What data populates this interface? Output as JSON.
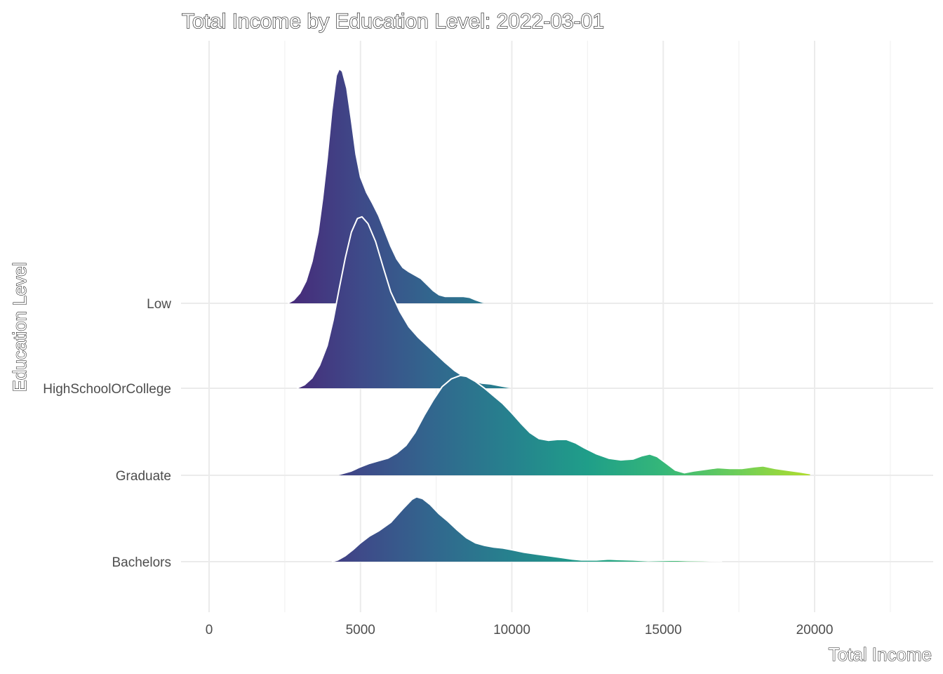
{
  "chart_data": {
    "type": "area",
    "subtype": "ridgeline",
    "title": "Total Income by Education Level: 2022-03-01",
    "xlabel": "Total Income",
    "ylabel": "Education Level",
    "xlim": [
      -500,
      24000
    ],
    "x_ticks": [
      0,
      5000,
      10000,
      15000,
      20000
    ],
    "x_tick_labels": [
      "0",
      "5000",
      "10000",
      "15000",
      "20000"
    ],
    "fill": "viridis gradient along x",
    "colors": [
      "#440154",
      "#482878",
      "#3e4a89",
      "#31688e",
      "#26828e",
      "#1f9e89",
      "#35b779",
      "#6ece58",
      "#b5de2b"
    ],
    "outline_color": "#ffffff",
    "grid": true,
    "legend": "none",
    "categories": [
      "Bachelors",
      "Graduate",
      "HighSchoolOrCollege",
      "Low"
    ],
    "series": [
      {
        "name": "Bachelors",
        "density": [
          [
            4050,
            0
          ],
          [
            4250,
            0.02
          ],
          [
            4500,
            0.07
          ],
          [
            4750,
            0.14
          ],
          [
            5000,
            0.22
          ],
          [
            5300,
            0.3
          ],
          [
            5600,
            0.36
          ],
          [
            6000,
            0.46
          ],
          [
            6400,
            0.62
          ],
          [
            6700,
            0.73
          ],
          [
            6850,
            0.76
          ],
          [
            7050,
            0.74
          ],
          [
            7300,
            0.67
          ],
          [
            7600,
            0.56
          ],
          [
            7900,
            0.47
          ],
          [
            8200,
            0.37
          ],
          [
            8500,
            0.28
          ],
          [
            8800,
            0.22
          ],
          [
            9100,
            0.19
          ],
          [
            9400,
            0.17
          ],
          [
            9700,
            0.16
          ],
          [
            10000,
            0.14
          ],
          [
            10400,
            0.11
          ],
          [
            10800,
            0.09
          ],
          [
            11200,
            0.07
          ],
          [
            11600,
            0.05
          ],
          [
            12000,
            0.03
          ],
          [
            12300,
            0.02
          ],
          [
            12800,
            0.02
          ],
          [
            13200,
            0.03
          ],
          [
            13500,
            0.025
          ],
          [
            14000,
            0.02
          ],
          [
            14500,
            0.01
          ],
          [
            15000,
            0.015
          ],
          [
            15400,
            0.017
          ],
          [
            15800,
            0.012
          ],
          [
            16300,
            0.01
          ],
          [
            16950,
            0.005
          ]
        ]
      },
      {
        "name": "Graduate",
        "density": [
          [
            4300,
            0.01
          ],
          [
            4700,
            0.05
          ],
          [
            5000,
            0.1
          ],
          [
            5300,
            0.14
          ],
          [
            5600,
            0.17
          ],
          [
            5900,
            0.2
          ],
          [
            6200,
            0.26
          ],
          [
            6500,
            0.35
          ],
          [
            6800,
            0.5
          ],
          [
            7100,
            0.7
          ],
          [
            7400,
            0.88
          ],
          [
            7700,
            1.04
          ],
          [
            8000,
            1.13
          ],
          [
            8300,
            1.17
          ],
          [
            8500,
            1.16
          ],
          [
            8800,
            1.1
          ],
          [
            9100,
            1.02
          ],
          [
            9400,
            0.93
          ],
          [
            9700,
            0.84
          ],
          [
            10000,
            0.73
          ],
          [
            10300,
            0.61
          ],
          [
            10600,
            0.5
          ],
          [
            10900,
            0.43
          ],
          [
            11200,
            0.41
          ],
          [
            11500,
            0.42
          ],
          [
            11800,
            0.42
          ],
          [
            12100,
            0.38
          ],
          [
            12400,
            0.32
          ],
          [
            12800,
            0.25
          ],
          [
            13200,
            0.2
          ],
          [
            13600,
            0.18
          ],
          [
            14000,
            0.19
          ],
          [
            14300,
            0.23
          ],
          [
            14550,
            0.25
          ],
          [
            14800,
            0.22
          ],
          [
            15100,
            0.14
          ],
          [
            15400,
            0.06
          ],
          [
            15700,
            0.03
          ],
          [
            16000,
            0.05
          ],
          [
            16400,
            0.07
          ],
          [
            16800,
            0.09
          ],
          [
            17200,
            0.08
          ],
          [
            17600,
            0.08
          ],
          [
            18000,
            0.1
          ],
          [
            18300,
            0.11
          ],
          [
            18700,
            0.08
          ],
          [
            19100,
            0.06
          ],
          [
            19500,
            0.04
          ],
          [
            19850,
            0.02
          ]
        ]
      },
      {
        "name": "HighSchoolOrCollege",
        "density": [
          [
            2900,
            0
          ],
          [
            3150,
            0.04
          ],
          [
            3400,
            0.12
          ],
          [
            3650,
            0.27
          ],
          [
            3900,
            0.5
          ],
          [
            4100,
            0.8
          ],
          [
            4300,
            1.17
          ],
          [
            4500,
            1.53
          ],
          [
            4700,
            1.83
          ],
          [
            4900,
            1.99
          ],
          [
            5050,
            2.01
          ],
          [
            5250,
            1.93
          ],
          [
            5500,
            1.72
          ],
          [
            5750,
            1.42
          ],
          [
            6000,
            1.13
          ],
          [
            6300,
            0.9
          ],
          [
            6600,
            0.72
          ],
          [
            6900,
            0.6
          ],
          [
            7200,
            0.5
          ],
          [
            7500,
            0.4
          ],
          [
            7800,
            0.3
          ],
          [
            8100,
            0.21
          ],
          [
            8400,
            0.14
          ],
          [
            8700,
            0.09
          ],
          [
            9000,
            0.06
          ],
          [
            9300,
            0.05
          ],
          [
            9600,
            0.03
          ],
          [
            9900,
            0.01
          ]
        ]
      },
      {
        "name": "Low",
        "density": [
          [
            2600,
            0
          ],
          [
            2800,
            0.04
          ],
          [
            3000,
            0.12
          ],
          [
            3200,
            0.26
          ],
          [
            3400,
            0.49
          ],
          [
            3600,
            0.83
          ],
          [
            3750,
            1.23
          ],
          [
            3900,
            1.7
          ],
          [
            4050,
            2.25
          ],
          [
            4200,
            2.67
          ],
          [
            4300,
            2.75
          ],
          [
            4400,
            2.72
          ],
          [
            4550,
            2.52
          ],
          [
            4700,
            2.15
          ],
          [
            4850,
            1.75
          ],
          [
            5000,
            1.48
          ],
          [
            5200,
            1.3
          ],
          [
            5400,
            1.17
          ],
          [
            5600,
            1.03
          ],
          [
            5800,
            0.85
          ],
          [
            6000,
            0.67
          ],
          [
            6200,
            0.52
          ],
          [
            6400,
            0.42
          ],
          [
            6600,
            0.37
          ],
          [
            6800,
            0.33
          ],
          [
            7000,
            0.29
          ],
          [
            7200,
            0.22
          ],
          [
            7400,
            0.15
          ],
          [
            7600,
            0.1
          ],
          [
            7800,
            0.08
          ],
          [
            8100,
            0.08
          ],
          [
            8400,
            0.08
          ],
          [
            8600,
            0.07
          ],
          [
            8800,
            0.04
          ],
          [
            9050,
            0.01
          ]
        ]
      }
    ]
  }
}
